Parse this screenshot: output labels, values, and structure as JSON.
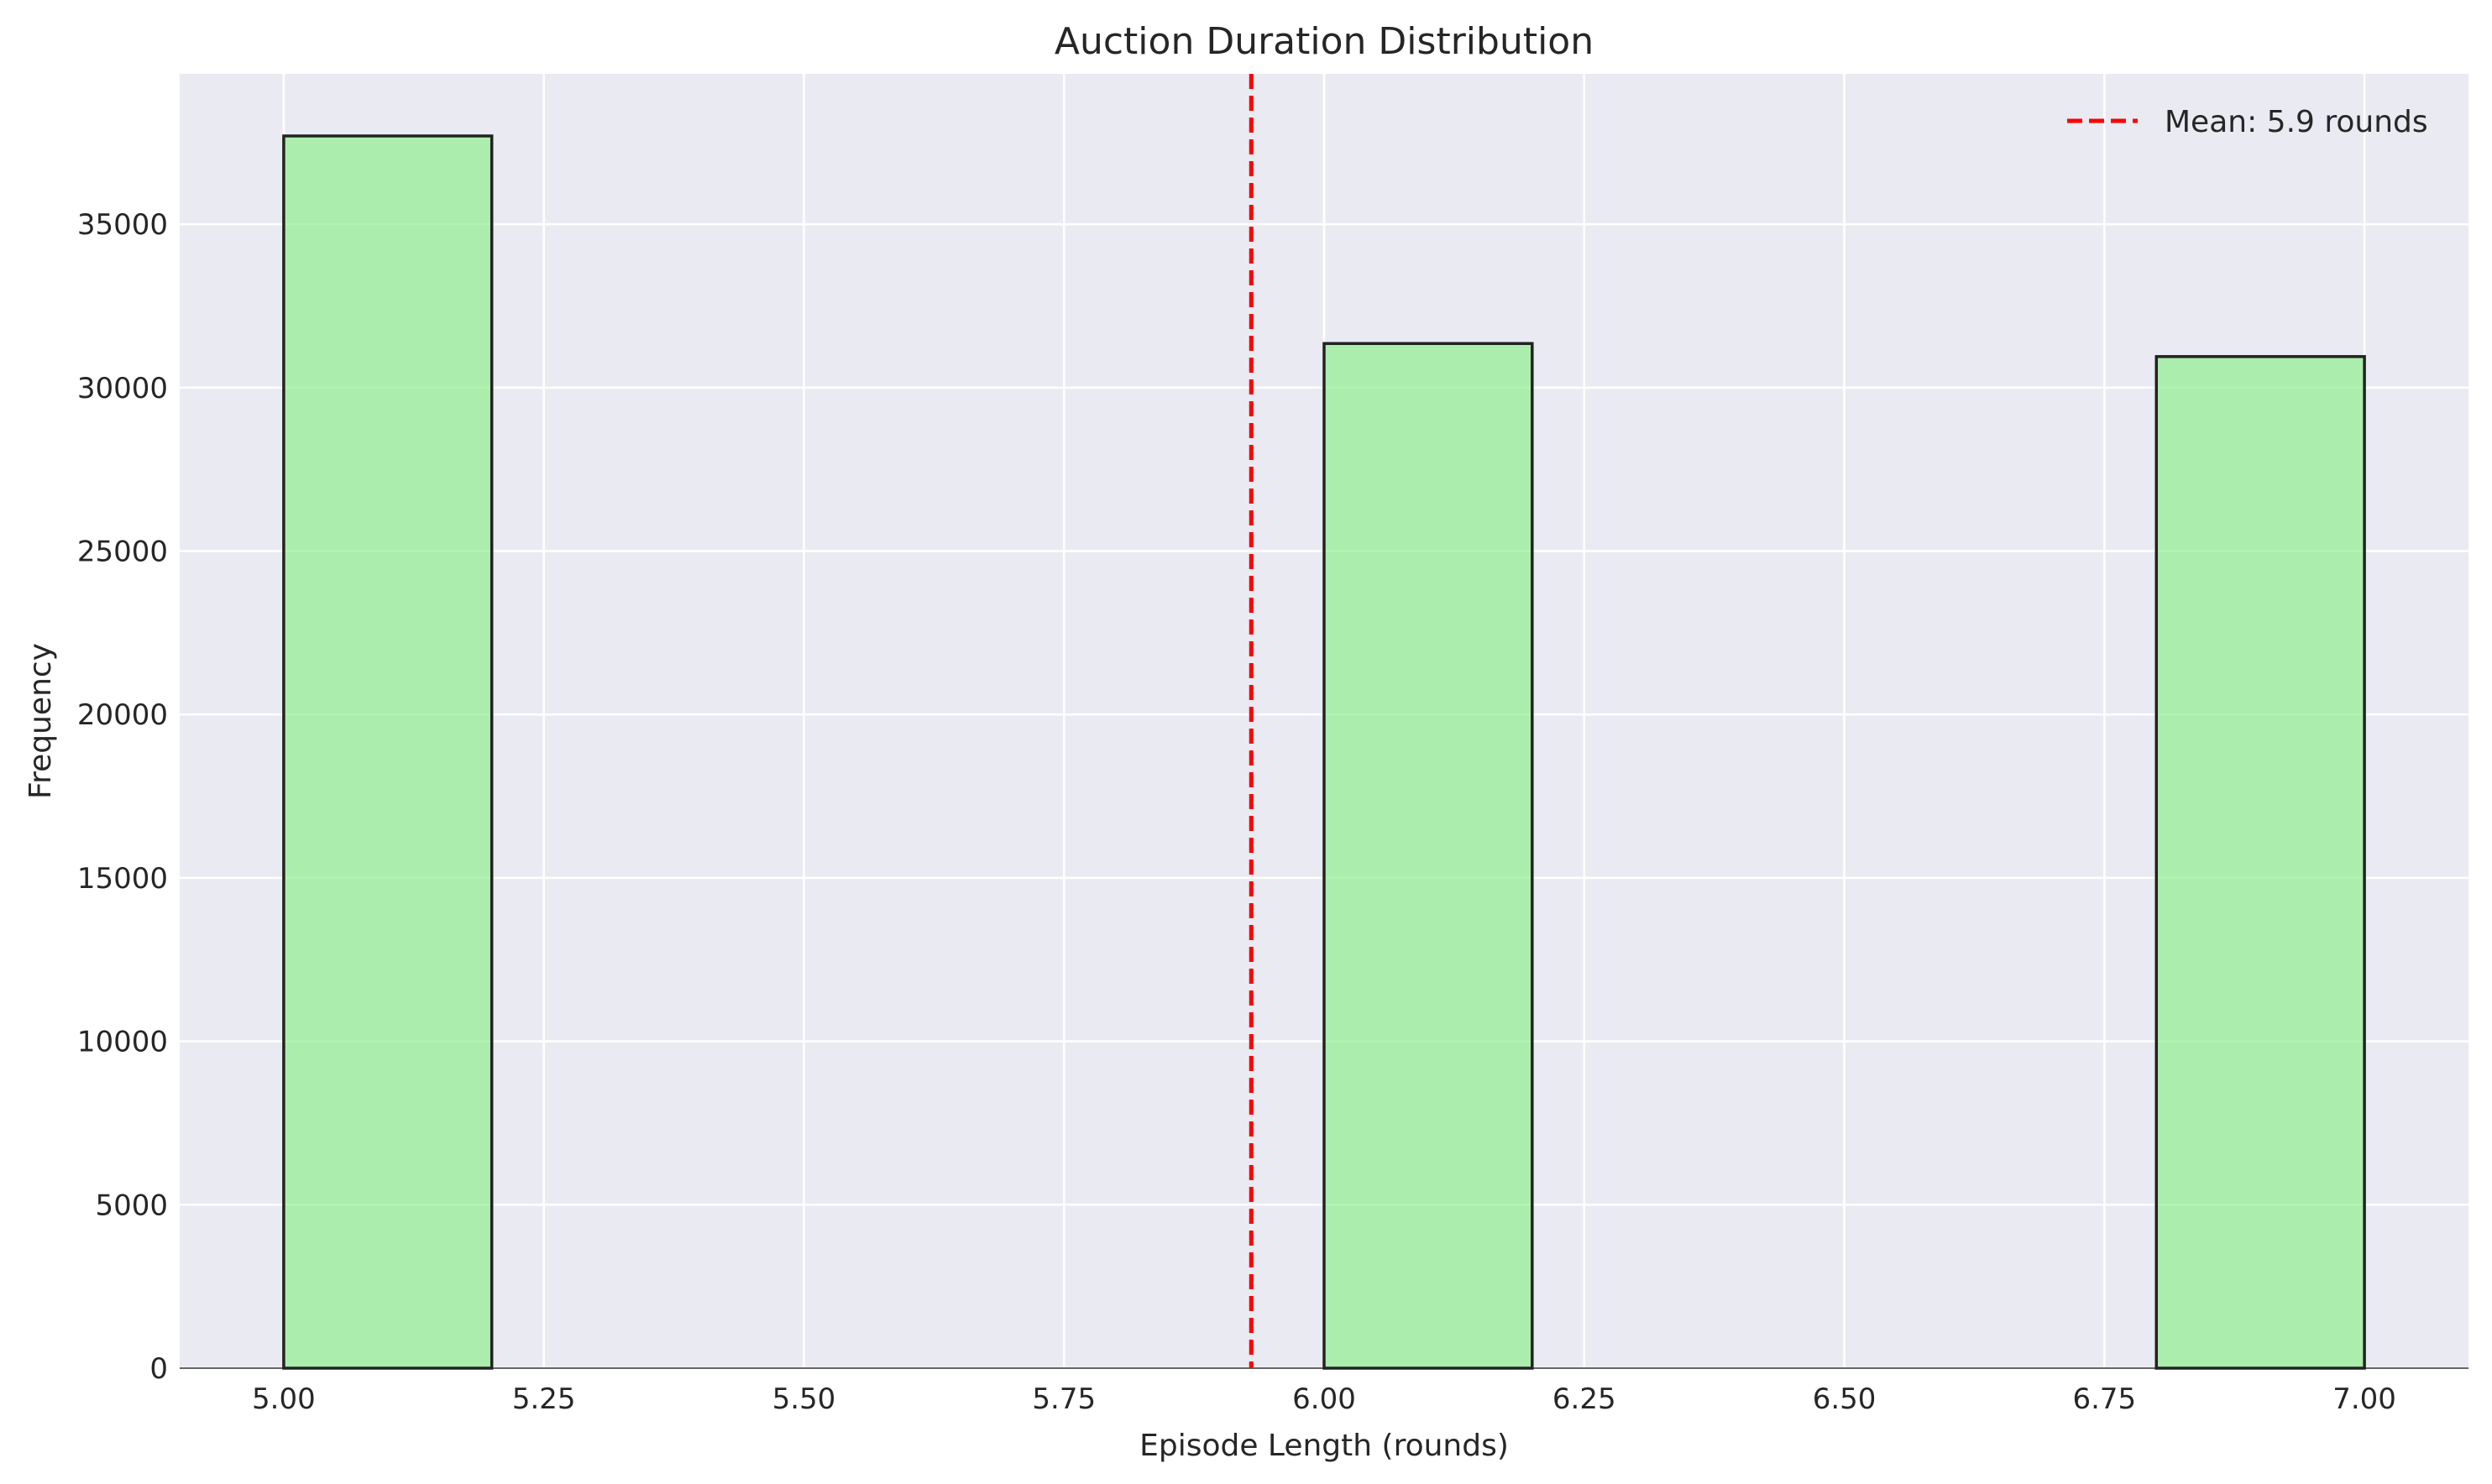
{
  "chart_data": {
    "type": "bar",
    "title": "Auction Duration Distribution",
    "xlabel": "Episode Length (rounds)",
    "ylabel": "Frequency",
    "xlim": [
      4.9,
      7.1
    ],
    "ylim": [
      0,
      39600
    ],
    "x_ticks": [
      "5.00",
      "5.25",
      "5.50",
      "5.75",
      "6.00",
      "6.25",
      "6.50",
      "6.75",
      "7.00"
    ],
    "y_ticks": [
      "0",
      "5000",
      "10000",
      "15000",
      "20000",
      "25000",
      "30000",
      "35000"
    ],
    "bins": [
      {
        "x_start": 5.0,
        "x_end": 5.2,
        "value": 37700
      },
      {
        "x_start": 6.0,
        "x_end": 6.2,
        "value": 31350
      },
      {
        "x_start": 6.8,
        "x_end": 7.0,
        "value": 30950
      }
    ],
    "mean_line": {
      "x": 5.93,
      "label": "Mean: 5.9 rounds",
      "color": "#ff0000"
    },
    "bar_color": "#90ee90",
    "bar_edge_color": "#222222",
    "background_color": "#eaeaf2",
    "grid": true,
    "legend_position": "top-right"
  }
}
